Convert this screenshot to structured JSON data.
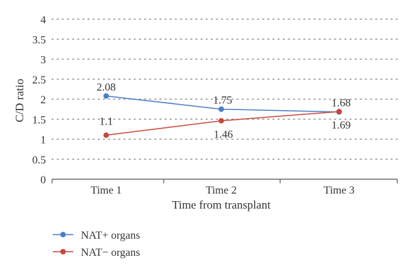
{
  "chart_data": {
    "type": "line",
    "categories": [
      "Time 1",
      "Time 2",
      "Time 3"
    ],
    "series": [
      {
        "name": "NAT+ organs",
        "values": [
          2.08,
          1.75,
          1.68
        ],
        "labels": [
          "2.08",
          "1.75",
          "1.68"
        ],
        "label_placement": "above",
        "color": "#4a7fc8"
      },
      {
        "name": "NAT− organs",
        "values": [
          1.1,
          1.46,
          1.69
        ],
        "labels": [
          "1.1",
          "1.46",
          "1.69"
        ],
        "label_placement": "mixed",
        "color": "#c8463c"
      }
    ],
    "xlabel": "Time from transplant",
    "ylabel": "C/D ratio",
    "ylim": [
      0,
      4
    ],
    "yticks": [
      "0",
      "0.5",
      "1",
      "1.5",
      "2",
      "2.5",
      "3",
      "3.5",
      "4"
    ],
    "grid": true,
    "legend_placement": "bottom-left"
  }
}
